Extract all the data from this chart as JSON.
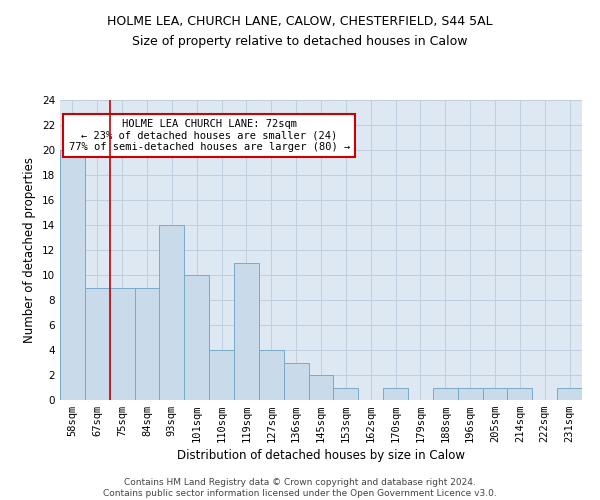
{
  "title": "HOLME LEA, CHURCH LANE, CALOW, CHESTERFIELD, S44 5AL",
  "subtitle": "Size of property relative to detached houses in Calow",
  "xlabel": "Distribution of detached houses by size in Calow",
  "ylabel": "Number of detached properties",
  "categories": [
    "58sqm",
    "67sqm",
    "75sqm",
    "84sqm",
    "93sqm",
    "101sqm",
    "110sqm",
    "119sqm",
    "127sqm",
    "136sqm",
    "145sqm",
    "153sqm",
    "162sqm",
    "170sqm",
    "179sqm",
    "188sqm",
    "196sqm",
    "205sqm",
    "214sqm",
    "222sqm",
    "231sqm"
  ],
  "values": [
    20,
    9,
    9,
    9,
    14,
    10,
    4,
    11,
    4,
    3,
    2,
    1,
    0,
    1,
    0,
    1,
    1,
    1,
    1,
    0,
    1
  ],
  "bar_color": "#c9daea",
  "bar_edge_color": "#7aaac8",
  "vline_x_index": 1.5,
  "vline_color": "#cc0000",
  "annotation_text": "HOLME LEA CHURCH LANE: 72sqm\n← 23% of detached houses are smaller (24)\n77% of semi-detached houses are larger (80) →",
  "annotation_box_color": "#ffffff",
  "annotation_box_edge": "#cc0000",
  "ylim": [
    0,
    24
  ],
  "yticks": [
    0,
    2,
    4,
    6,
    8,
    10,
    12,
    14,
    16,
    18,
    20,
    22,
    24
  ],
  "grid_color": "#c0cfe0",
  "background_color": "#dde8f2",
  "footer_line1": "Contains HM Land Registry data © Crown copyright and database right 2024.",
  "footer_line2": "Contains public sector information licensed under the Open Government Licence v3.0.",
  "title_fontsize": 9,
  "subtitle_fontsize": 9,
  "xlabel_fontsize": 8.5,
  "ylabel_fontsize": 8.5,
  "annot_fontsize": 7.5,
  "tick_fontsize": 7.5,
  "footer_fontsize": 6.5
}
